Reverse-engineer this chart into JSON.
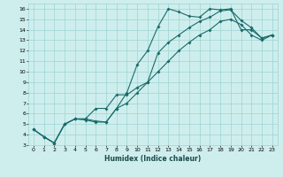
{
  "xlabel": "Humidex (Indice chaleur)",
  "xlim": [
    -0.5,
    23.5
  ],
  "ylim": [
    3,
    16.5
  ],
  "xticks": [
    0,
    1,
    2,
    3,
    4,
    5,
    6,
    7,
    8,
    9,
    10,
    11,
    12,
    13,
    14,
    15,
    16,
    17,
    18,
    19,
    20,
    21,
    22,
    23
  ],
  "yticks": [
    3,
    4,
    5,
    6,
    7,
    8,
    9,
    10,
    11,
    12,
    13,
    14,
    15,
    16
  ],
  "background_color": "#ceeeed",
  "grid_color": "#9dd4d4",
  "line_color": "#1a6b6b",
  "series1_x": [
    0,
    1,
    2,
    3,
    4,
    5,
    6,
    7,
    8,
    9,
    10,
    11,
    12,
    13,
    14,
    15,
    16,
    17,
    18,
    19,
    20,
    21,
    22,
    23
  ],
  "series1_y": [
    4.5,
    3.8,
    3.2,
    5.0,
    5.5,
    5.4,
    5.2,
    5.2,
    6.5,
    8.0,
    10.7,
    12.0,
    14.3,
    16.0,
    15.7,
    15.3,
    15.2,
    16.0,
    15.9,
    16.0,
    14.0,
    14.0,
    13.2,
    13.5
  ],
  "series2_x": [
    0,
    1,
    2,
    3,
    4,
    5,
    6,
    7,
    8,
    9,
    10,
    11,
    12,
    13,
    14,
    15,
    16,
    17,
    18,
    19,
    20,
    21,
    22,
    23
  ],
  "series2_y": [
    4.5,
    3.8,
    3.2,
    5.0,
    5.5,
    5.5,
    6.5,
    6.5,
    7.8,
    7.8,
    8.5,
    9.0,
    11.8,
    12.8,
    13.5,
    14.2,
    14.8,
    15.2,
    15.8,
    15.9,
    14.9,
    14.2,
    13.2,
    13.5
  ],
  "series3_x": [
    0,
    1,
    2,
    3,
    4,
    5,
    6,
    7,
    8,
    9,
    10,
    11,
    12,
    13,
    14,
    15,
    16,
    17,
    18,
    19,
    20,
    21,
    22,
    23
  ],
  "series3_y": [
    4.5,
    3.8,
    3.2,
    5.0,
    5.5,
    5.5,
    5.3,
    5.2,
    6.5,
    7.0,
    8.0,
    9.0,
    10.0,
    11.0,
    12.0,
    12.8,
    13.5,
    14.0,
    14.8,
    15.0,
    14.5,
    13.5,
    13.0,
    13.5
  ]
}
